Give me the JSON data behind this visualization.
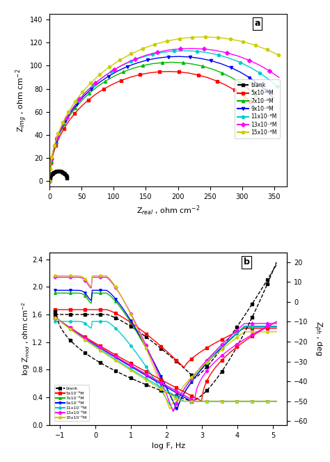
{
  "colors": {
    "blank": "#000000",
    "5e6": "#ff0000",
    "7e6": "#00bb00",
    "9e6": "#0000ff",
    "11e6": "#00cccc",
    "13e6": "#ff00ff",
    "15e6": "#cccc00"
  },
  "legend_labels": [
    "blank",
    "5x10⁻⁶M",
    "7x10⁻⁶M",
    "9x10⁻⁶M",
    "11x10⁻⁶M",
    "13x10⁻⁶M",
    "15x10⁻⁶M"
  ],
  "nyquist": {
    "xlabel": "Z$_{real}$ , ohm cm$^{-2}$",
    "ylabel": "Z$_{img}$ , ohm cm$^{-2}$",
    "xlim": [
      0,
      370
    ],
    "ylim": [
      -5,
      145
    ],
    "xticks": [
      0,
      50,
      100,
      150,
      200,
      250,
      300,
      350
    ],
    "yticks": [
      0,
      20,
      40,
      60,
      80,
      100,
      120,
      140
    ]
  },
  "bode": {
    "xlabel": "log F, Hz",
    "ylabel_left": "log Z$_{mod}$ , ohm cm$^{-2}$",
    "ylabel_right": "Z$_{ph}$ , deg",
    "xlim": [
      -1.3,
      5.4
    ],
    "ylim_left": [
      0.0,
      2.5
    ],
    "ylim_right": [
      -62,
      25
    ],
    "xticks": [
      -1,
      0,
      1,
      2,
      3,
      4,
      5
    ],
    "yticks_left": [
      0.0,
      0.4,
      0.8,
      1.2,
      1.6,
      2.0,
      2.4
    ],
    "yticks_right": [
      -60,
      -50,
      -40,
      -30,
      -20,
      -10,
      0,
      10,
      20
    ]
  }
}
